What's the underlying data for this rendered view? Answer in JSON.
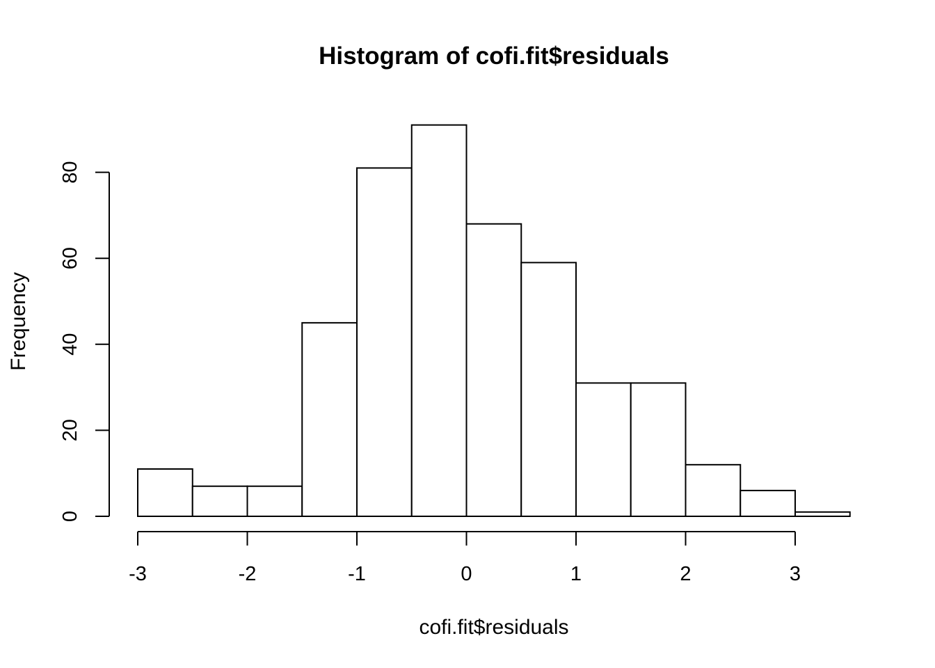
{
  "chart_data": {
    "type": "bar",
    "title": "Histogram of cofi.fit$residuals",
    "xlabel": "cofi.fit$residuals",
    "ylabel": "Frequency",
    "bins": [
      {
        "start": -3.0,
        "end": -2.5,
        "count": 11
      },
      {
        "start": -2.5,
        "end": -2.0,
        "count": 7
      },
      {
        "start": -2.0,
        "end": -1.5,
        "count": 7
      },
      {
        "start": -1.5,
        "end": -1.0,
        "count": 45
      },
      {
        "start": -1.0,
        "end": -0.5,
        "count": 81
      },
      {
        "start": -0.5,
        "end": 0.0,
        "count": 91
      },
      {
        "start": 0.0,
        "end": 0.5,
        "count": 68
      },
      {
        "start": 0.5,
        "end": 1.0,
        "count": 59
      },
      {
        "start": 1.0,
        "end": 1.5,
        "count": 31
      },
      {
        "start": 1.5,
        "end": 2.0,
        "count": 31
      },
      {
        "start": 2.0,
        "end": 2.5,
        "count": 12
      },
      {
        "start": 2.5,
        "end": 3.0,
        "count": 6
      },
      {
        "start": 3.0,
        "end": 3.5,
        "count": 1
      }
    ],
    "xticks": [
      -3,
      -2,
      -1,
      0,
      1,
      2,
      3
    ],
    "yticks": [
      0,
      20,
      40,
      60,
      80
    ],
    "xlim": [
      -3,
      3.5
    ],
    "ylim": [
      0,
      91
    ],
    "grid": false,
    "colors": {
      "bar_fill": "#ffffff",
      "bar_stroke": "#000000"
    }
  }
}
